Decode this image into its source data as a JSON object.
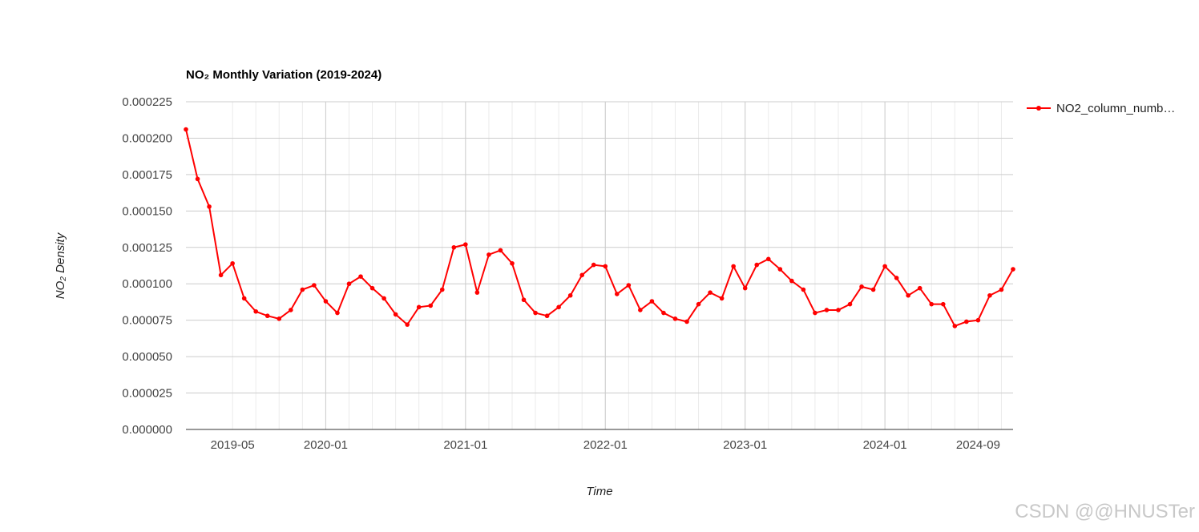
{
  "chart_data": {
    "type": "line",
    "title": "NO₂ Monthly Variation (2019-2024)",
    "xlabel": "Time",
    "ylabel": "NO₂ Density",
    "ylim": [
      0,
      0.000225
    ],
    "y_ticks": [
      "0.000000",
      "0.000025",
      "0.000050",
      "0.000075",
      "0.000100",
      "0.000125",
      "0.000150",
      "0.000175",
      "0.000200",
      "0.000225"
    ],
    "x_ticks": [
      {
        "date": "2019-05",
        "label": "2019-05"
      },
      {
        "date": "2020-01",
        "label": "2020-01"
      },
      {
        "date": "2021-01",
        "label": "2021-01"
      },
      {
        "date": "2022-01",
        "label": "2022-01"
      },
      {
        "date": "2023-01",
        "label": "2023-01"
      },
      {
        "date": "2024-01",
        "label": "2024-01"
      },
      {
        "date": "2024-09",
        "label": "2024-09"
      }
    ],
    "x_range": [
      "2019-01",
      "2024-12"
    ],
    "legend_position": "right",
    "grid": true,
    "series": [
      {
        "name": "NO2_column_numb…",
        "color": "#ff0000",
        "x": [
          "2019-01",
          "2019-02",
          "2019-03",
          "2019-04",
          "2019-05",
          "2019-06",
          "2019-07",
          "2019-08",
          "2019-09",
          "2019-10",
          "2019-11",
          "2019-12",
          "2020-01",
          "2020-02",
          "2020-03",
          "2020-04",
          "2020-05",
          "2020-06",
          "2020-07",
          "2020-08",
          "2020-09",
          "2020-10",
          "2020-11",
          "2020-12",
          "2021-01",
          "2021-02",
          "2021-03",
          "2021-04",
          "2021-05",
          "2021-06",
          "2021-07",
          "2021-08",
          "2021-09",
          "2021-10",
          "2021-11",
          "2021-12",
          "2022-01",
          "2022-02",
          "2022-03",
          "2022-04",
          "2022-05",
          "2022-06",
          "2022-07",
          "2022-08",
          "2022-09",
          "2022-10",
          "2022-11",
          "2022-12",
          "2023-01",
          "2023-02",
          "2023-03",
          "2023-04",
          "2023-05",
          "2023-06",
          "2023-07",
          "2023-08",
          "2023-09",
          "2023-10",
          "2023-11",
          "2023-12",
          "2024-01",
          "2024-02",
          "2024-03",
          "2024-04",
          "2024-05",
          "2024-06",
          "2024-07",
          "2024-08",
          "2024-09",
          "2024-10",
          "2024-11",
          "2024-12"
        ],
        "values": [
          0.000206,
          0.000172,
          0.000153,
          0.000106,
          0.000114,
          9e-05,
          8.1e-05,
          7.8e-05,
          7.6e-05,
          8.2e-05,
          9.6e-05,
          9.9e-05,
          8.8e-05,
          8e-05,
          0.0001,
          0.000105,
          9.7e-05,
          9e-05,
          7.9e-05,
          7.2e-05,
          8.4e-05,
          8.5e-05,
          9.6e-05,
          0.000125,
          0.000127,
          9.4e-05,
          0.00012,
          0.000123,
          0.000114,
          8.9e-05,
          8e-05,
          7.8e-05,
          8.4e-05,
          9.2e-05,
          0.000106,
          0.000113,
          0.000112,
          9.3e-05,
          9.9e-05,
          8.2e-05,
          8.8e-05,
          8e-05,
          7.6e-05,
          7.4e-05,
          8.6e-05,
          9.4e-05,
          9e-05,
          0.000112,
          9.7e-05,
          0.000113,
          0.000117,
          0.00011,
          0.000102,
          9.6e-05,
          8e-05,
          8.2e-05,
          8.2e-05,
          8.6e-05,
          9.8e-05,
          9.6e-05,
          0.000112,
          0.000104,
          9.2e-05,
          9.7e-05,
          8.6e-05,
          8.6e-05,
          7.1e-05,
          7.4e-05,
          7.5e-05,
          9.2e-05,
          9.6e-05,
          0.00011
        ]
      }
    ]
  },
  "watermark": "CSDN @@HNUSTer"
}
